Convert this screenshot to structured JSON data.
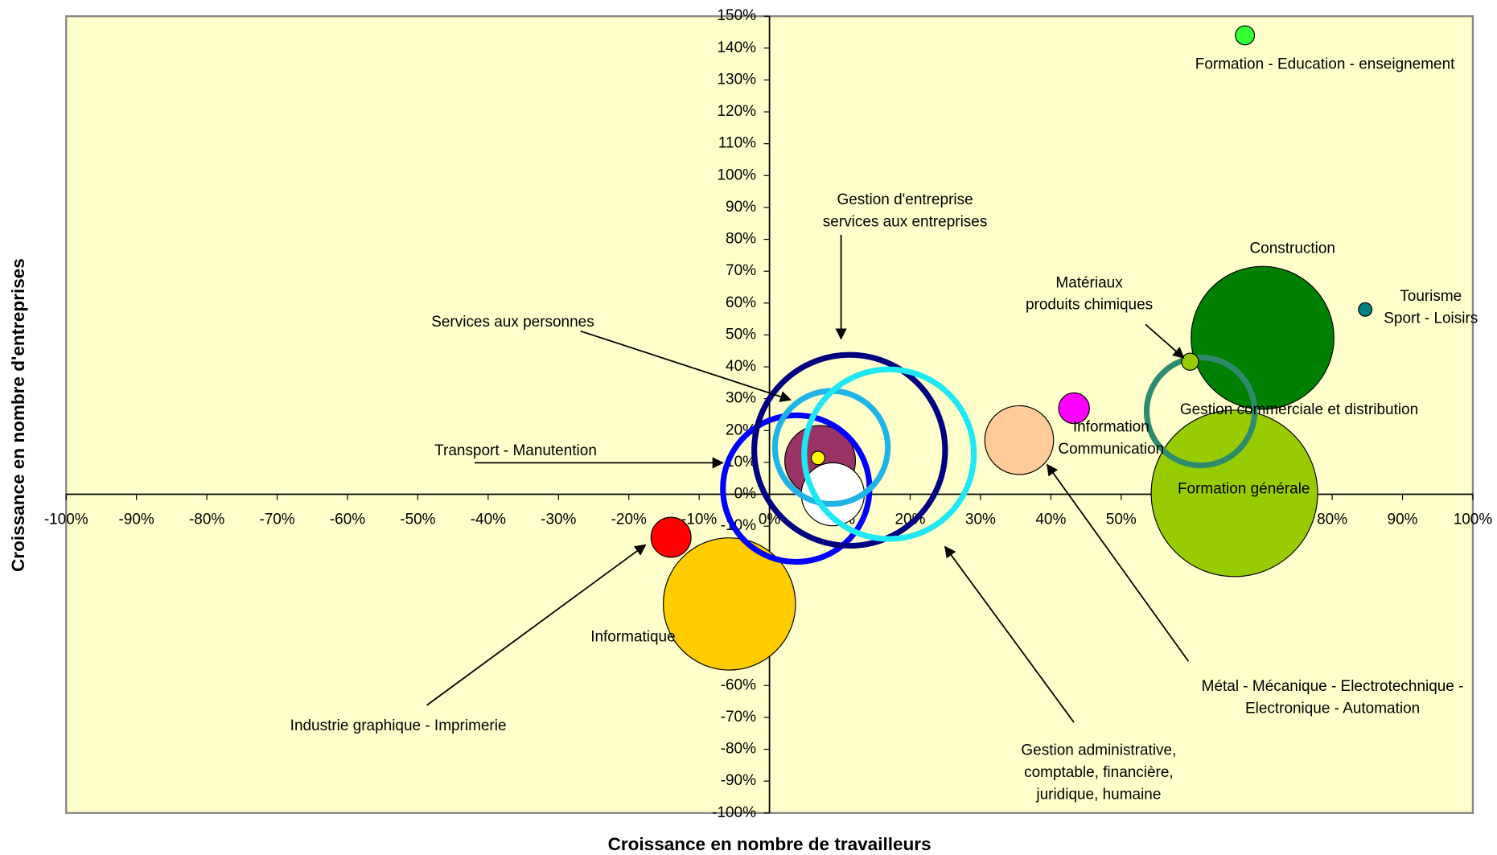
{
  "chart_data": {
    "type": "bubble",
    "xlabel": "Croissance en nombre de travailleurs",
    "ylabel": "Croissance en nombre d'entreprises",
    "xlim": [
      -100,
      100
    ],
    "ylim": [
      -100,
      150
    ],
    "xticks": [
      {
        "value": -100,
        "label": "-100%"
      },
      {
        "value": -90,
        "label": "-90%"
      },
      {
        "value": -80,
        "label": "-80%"
      },
      {
        "value": -70,
        "label": "-70%"
      },
      {
        "value": -60,
        "label": "-60%"
      },
      {
        "value": -50,
        "label": "-50%"
      },
      {
        "value": -40,
        "label": "-40%"
      },
      {
        "value": -30,
        "label": "-30%"
      },
      {
        "value": -20,
        "label": "-20%"
      },
      {
        "value": -10,
        "label": "-10%"
      },
      {
        "value": 0,
        "label": "0%"
      },
      {
        "value": 10,
        "label": "10%"
      },
      {
        "value": 20,
        "label": "20%"
      },
      {
        "value": 30,
        "label": "30%"
      },
      {
        "value": 40,
        "label": "40%"
      },
      {
        "value": 50,
        "label": "50%"
      },
      {
        "value": 60,
        "label": "60%"
      },
      {
        "value": 70,
        "label": "70%"
      },
      {
        "value": 80,
        "label": "80%"
      },
      {
        "value": 90,
        "label": "90%"
      },
      {
        "value": 100,
        "label": "100%"
      }
    ],
    "yticks": [
      {
        "value": -100,
        "label": "-100%"
      },
      {
        "value": -90,
        "label": "-90%"
      },
      {
        "value": -80,
        "label": "-80%"
      },
      {
        "value": -70,
        "label": "-70%"
      },
      {
        "value": -60,
        "label": "-60%"
      },
      {
        "value": -50,
        "label": "-50%"
      },
      {
        "value": -40,
        "label": "-40%"
      },
      {
        "value": -30,
        "label": "-30%"
      },
      {
        "value": -20,
        "label": "-20%"
      },
      {
        "value": -10,
        "label": "-10%"
      },
      {
        "value": 0,
        "label": "0%"
      },
      {
        "value": 10,
        "label": "10%"
      },
      {
        "value": 20,
        "label": "20%"
      },
      {
        "value": 30,
        "label": "30%"
      },
      {
        "value": 40,
        "label": "40%"
      },
      {
        "value": 50,
        "label": "50%"
      },
      {
        "value": 60,
        "label": "60%"
      },
      {
        "value": 70,
        "label": "70%"
      },
      {
        "value": 80,
        "label": "80%"
      },
      {
        "value": 90,
        "label": "90%"
      },
      {
        "value": 100,
        "label": "100%"
      },
      {
        "value": 110,
        "label": "110%"
      },
      {
        "value": 120,
        "label": "120%"
      },
      {
        "value": 130,
        "label": "130%"
      },
      {
        "value": 140,
        "label": "140%"
      },
      {
        "value": 150,
        "label": "150%"
      }
    ],
    "points": [
      {
        "label": [
          "Informatique"
        ],
        "x": -5.7,
        "y": -34.4,
        "size": 48,
        "color": "#ffcc00"
      },
      {
        "label": [
          "Industrie graphique - Imprimerie"
        ],
        "x": -14,
        "y": -13.5,
        "size": 4.4,
        "color": "#ff0000"
      },
      {
        "label": [
          "Formation générale"
        ],
        "x": 66.1,
        "y": 0.3,
        "size": 76,
        "color": "#99cc00"
      },
      {
        "label": [
          "Construction"
        ],
        "x": 70.1,
        "y": 49.1,
        "size": 56,
        "color": "#008000"
      },
      {
        "label": [
          "Tourisme",
          "Sport - Loisirs"
        ],
        "x": 84.7,
        "y": 58,
        "size": 0.5,
        "color": "#008080"
      },
      {
        "label": [
          "Formation - Education - enseignement"
        ],
        "x": 67.6,
        "y": 144,
        "size": 1,
        "color": "#33ff33"
      },
      {
        "label": [
          "Métal - Mécanique - Electrotechnique -",
          "Electronique - Automation"
        ],
        "x": 35.5,
        "y": 17,
        "size": 13,
        "color": "#ffcc99"
      },
      {
        "label": [
          "Information",
          "Communication"
        ],
        "x": 43.3,
        "y": 27,
        "size": 2.6,
        "color": "#ff00ff"
      },
      {
        "x": 7.2,
        "y": 10.5,
        "size": 13.7,
        "color": "#993366"
      },
      {
        "x": 9,
        "y": 0,
        "size": 10.9,
        "color": "#ffffff"
      },
      {
        "label": [
          "Transport - Manutention"
        ],
        "x": 3.8,
        "y": 1.8,
        "size": 59,
        "color": "#0000ff",
        "ring": true
      },
      {
        "label": [
          "Gestion d'entreprise",
          "services aux entreprises"
        ],
        "x": 11.4,
        "y": 13.8,
        "size": 100,
        "color": "#000080",
        "ring": true
      },
      {
        "label": [
          "Services aux personnes"
        ],
        "x": 8.8,
        "y": 14.7,
        "size": 35,
        "color": "#1fb4e8",
        "ring": true
      },
      {
        "label": [
          "Gestion administrative,",
          "comptable, financière,",
          "juridique, humaine"
        ],
        "x": 17,
        "y": 12.6,
        "size": 79,
        "color": "#1fe8f5",
        "ring": true
      },
      {
        "label": [
          "Gestion commerciale et distribution"
        ],
        "x": 61.3,
        "y": 26,
        "size": 32,
        "color": "#2e8b6e",
        "ring": true
      },
      {
        "label": [
          "Matériaux",
          "produits chimiques"
        ],
        "x": 59.8,
        "y": 41.6,
        "size": 0.8,
        "color": "#99cc00"
      },
      {
        "x": 6.9,
        "y": 11.4,
        "size": 0.5,
        "color": "#ffff00"
      }
    ]
  }
}
